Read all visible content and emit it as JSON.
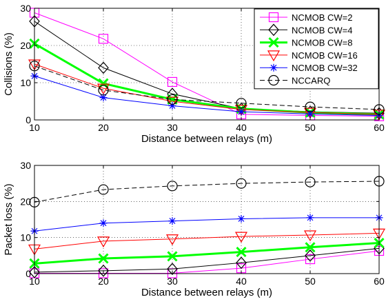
{
  "chart_data": [
    {
      "type": "line",
      "xlabel": "Distance between relays (m)",
      "ylabel": "Collisions (%)",
      "xlim": [
        10,
        60
      ],
      "ylim": [
        0,
        30
      ],
      "x": [
        10,
        20,
        30,
        40,
        50,
        60
      ],
      "xticks": [
        "10",
        "20",
        "30",
        "40",
        "50",
        "60"
      ],
      "yticks": [
        "0",
        "10",
        "20",
        "30"
      ],
      "grid": true,
      "legend_position": "top-right",
      "series": [
        {
          "name": "NCMOB CW=2",
          "values": [
            28.8,
            21.8,
            10.2,
            1.5,
            1.2,
            1.0
          ],
          "color": "#ff00ff",
          "marker": "square",
          "dash": "solid",
          "width": 1
        },
        {
          "name": "NCMOB CW=4",
          "values": [
            26.5,
            14.0,
            7.0,
            3.0,
            2.2,
            1.8
          ],
          "color": "#000000",
          "marker": "diamond",
          "dash": "solid",
          "width": 1
        },
        {
          "name": "NCMOB CW=8",
          "values": [
            20.5,
            9.8,
            5.5,
            3.0,
            2.0,
            1.5
          ],
          "color": "#00ff00",
          "marker": "x",
          "dash": "solid",
          "width": 3
        },
        {
          "name": "NCMOB CW=16",
          "values": [
            15.0,
            8.5,
            5.0,
            2.8,
            2.0,
            1.5
          ],
          "color": "#ff0000",
          "marker": "triangle-down",
          "dash": "solid",
          "width": 1
        },
        {
          "name": "NCMOB CW=32",
          "values": [
            11.8,
            6.0,
            3.8,
            2.2,
            1.6,
            1.2
          ],
          "color": "#0000ff",
          "marker": "star",
          "dash": "solid",
          "width": 1
        },
        {
          "name": "NCCARQ",
          "values": [
            14.5,
            8.0,
            5.5,
            4.5,
            3.5,
            2.8
          ],
          "color": "#000000",
          "marker": "circle",
          "dash": "dashed",
          "width": 1
        }
      ]
    },
    {
      "type": "line",
      "xlabel": "Distance between relays (m)",
      "ylabel": "Packet loss (%)",
      "xlim": [
        10,
        60
      ],
      "ylim": [
        0,
        30
      ],
      "x": [
        10,
        20,
        30,
        40,
        50,
        60
      ],
      "xticks": [
        "10",
        "20",
        "30",
        "40",
        "50",
        "60"
      ],
      "yticks": [
        "0",
        "10",
        "20",
        "30"
      ],
      "grid": true,
      "series": [
        {
          "name": "NCMOB CW=2",
          "values": [
            0.1,
            0.1,
            0.1,
            1.5,
            4.0,
            6.3
          ],
          "color": "#ff00ff",
          "marker": "square",
          "dash": "solid",
          "width": 1
        },
        {
          "name": "NCMOB CW=4",
          "values": [
            0.4,
            0.8,
            1.3,
            3.0,
            5.0,
            7.0
          ],
          "color": "#000000",
          "marker": "diamond",
          "dash": "solid",
          "width": 1
        },
        {
          "name": "NCMOB CW=8",
          "values": [
            2.8,
            4.2,
            4.8,
            6.0,
            7.3,
            8.5
          ],
          "color": "#00ff00",
          "marker": "x",
          "dash": "solid",
          "width": 3
        },
        {
          "name": "NCMOB CW=16",
          "values": [
            6.8,
            9.0,
            9.6,
            10.3,
            10.7,
            11.2
          ],
          "color": "#ff0000",
          "marker": "triangle-down",
          "dash": "solid",
          "width": 1
        },
        {
          "name": "NCMOB CW=32",
          "values": [
            11.8,
            14.0,
            14.6,
            15.2,
            15.5,
            15.5
          ],
          "color": "#0000ff",
          "marker": "star",
          "dash": "solid",
          "width": 1
        },
        {
          "name": "NCCARQ",
          "values": [
            19.8,
            23.3,
            24.3,
            25.0,
            25.4,
            25.6
          ],
          "color": "#000000",
          "marker": "circle",
          "dash": "dashed",
          "width": 1
        }
      ]
    }
  ]
}
